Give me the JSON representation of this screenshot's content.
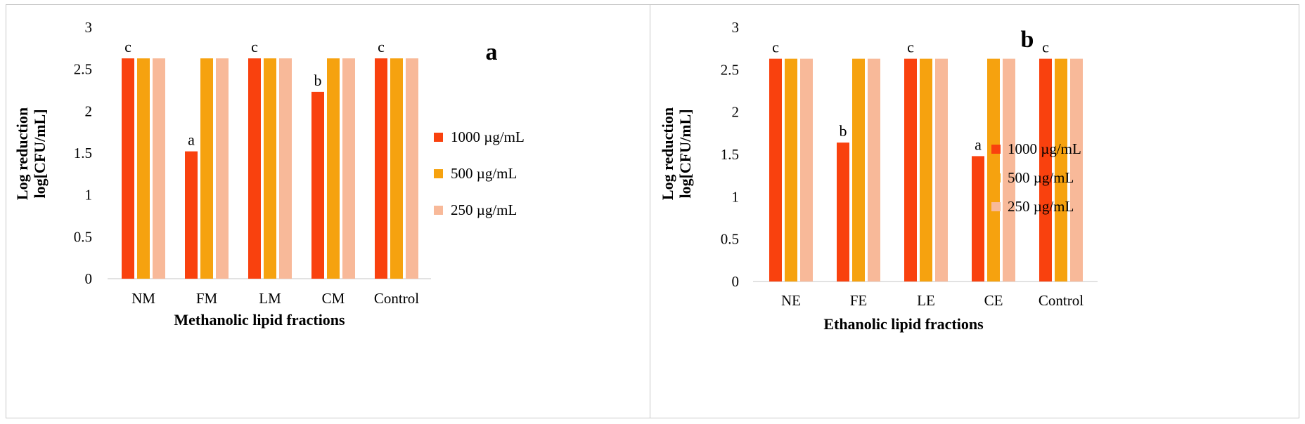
{
  "chart_data": [
    {
      "type": "bar",
      "panel_label": "a",
      "xlabel": "Methanolic lipid  fractions",
      "ylabel_line1": "Log reduction",
      "ylabel_line2": "log[CFU/mL]",
      "ylim": [
        0,
        3
      ],
      "yticks": [
        "0",
        "0.5",
        "1",
        "1.5",
        "2",
        "2.5",
        "3"
      ],
      "grid": false,
      "legend_position": "right",
      "categories": [
        "NM",
        "FM",
        "LM",
        "CM",
        "Control"
      ],
      "series": [
        {
          "name": "1000 µg/mL",
          "color": "#F9410E",
          "values": [
            2.63,
            1.52,
            2.63,
            2.23,
            2.63
          ]
        },
        {
          "name": "500 µg/mL",
          "color": "#F6A20F",
          "values": [
            2.63,
            2.63,
            2.63,
            2.63,
            2.63
          ]
        },
        {
          "name": "250 µg/mL",
          "color": "#F8B999",
          "values": [
            2.63,
            2.63,
            2.63,
            2.63,
            2.63
          ]
        }
      ],
      "annotations": [
        "c",
        "a",
        "c",
        "b",
        "c"
      ]
    },
    {
      "type": "bar",
      "panel_label": "b",
      "xlabel": "Ethanolic lipid fractions",
      "ylabel_line1": "Log reduction",
      "ylabel_line2": "log[CFU/mL]",
      "ylim": [
        0,
        3
      ],
      "yticks": [
        "0",
        "0.5",
        "1",
        "1.5",
        "2",
        "2.5",
        "3"
      ],
      "grid": false,
      "legend_position": "right",
      "categories": [
        "NE",
        "FE",
        "LE",
        "CE",
        "Control"
      ],
      "series": [
        {
          "name": "1000 µg/mL",
          "color": "#F9410E",
          "values": [
            2.63,
            1.64,
            2.63,
            1.48,
            2.63
          ]
        },
        {
          "name": "500 µg/mL",
          "color": "#F6A20F",
          "values": [
            2.63,
            2.63,
            2.63,
            2.63,
            2.63
          ]
        },
        {
          "name": "250 µg/mL",
          "color": "#F8B999",
          "values": [
            2.63,
            2.63,
            2.63,
            2.63,
            2.63
          ]
        }
      ],
      "annotations": [
        "c",
        "b",
        "c",
        "a",
        "c"
      ]
    }
  ]
}
